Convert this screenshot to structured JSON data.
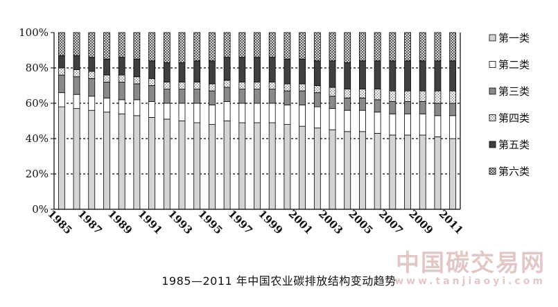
{
  "chart_data": {
    "type": "bar",
    "stacked": true,
    "percent_stacked": true,
    "title": "1985—2011 年中国农业碳排放结构变动趋势",
    "ylim": [
      0,
      100
    ],
    "yticks": [
      "0%",
      "20%",
      "40%",
      "60%",
      "80%",
      "100%"
    ],
    "grid": "horizontal dashed at 20% intervals",
    "legend_position": "right",
    "categories": [
      "1985",
      "1986",
      "1987",
      "1988",
      "1989",
      "1990",
      "1991",
      "1992",
      "1993",
      "1994",
      "1995",
      "1996",
      "1997",
      "1998",
      "1999",
      "2000",
      "2001",
      "2002",
      "2003",
      "2004",
      "2005",
      "2006",
      "2007",
      "2008",
      "2009",
      "2010",
      "2011"
    ],
    "xtick_labels": [
      "1985",
      "1987",
      "1989",
      "1991",
      "1993",
      "1995",
      "1997",
      "1999",
      "2001",
      "2003",
      "2005",
      "2007",
      "2009",
      "2011"
    ],
    "series": [
      {
        "name": "第一类",
        "color": "#d4d4d4",
        "pattern": "solid-light",
        "values": [
          58,
          57,
          56,
          55,
          54,
          53,
          52,
          51,
          50,
          49,
          48,
          50,
          49,
          49,
          49,
          48,
          47,
          46,
          45,
          44,
          44,
          43,
          42,
          42,
          42,
          41,
          40
        ]
      },
      {
        "name": "第二类",
        "color": "#ffffff",
        "pattern": "white",
        "values": [
          8,
          8,
          8,
          8,
          8,
          9,
          9,
          9,
          10,
          11,
          11,
          11,
          11,
          11,
          11,
          11,
          12,
          12,
          12,
          12,
          12,
          12,
          12,
          12,
          12,
          12,
          13
        ]
      },
      {
        "name": "第三类",
        "color": "#8a8a8a",
        "pattern": "solid-mid",
        "values": [
          10,
          10,
          10,
          9,
          10,
          9,
          9,
          8,
          8,
          8,
          8,
          8,
          8,
          8,
          8,
          8,
          8,
          8,
          7,
          7,
          7,
          7,
          7,
          7,
          7,
          7,
          7
        ]
      },
      {
        "name": "第四类",
        "color": "#cccccc",
        "pattern": "speckled",
        "values": [
          4,
          4,
          4,
          4,
          4,
          4,
          4,
          4,
          4,
          4,
          4,
          4,
          4,
          4,
          4,
          4,
          4,
          4,
          5,
          5,
          5,
          6,
          6,
          6,
          6,
          7,
          7
        ]
      },
      {
        "name": "第五类",
        "color": "#404040",
        "pattern": "solid-dark",
        "values": [
          7,
          8,
          8,
          9,
          10,
          10,
          10,
          11,
          11,
          12,
          13,
          13,
          14,
          14,
          14,
          14,
          14,
          14,
          15,
          15,
          16,
          16,
          17,
          17,
          17,
          17,
          17
        ]
      },
      {
        "name": "第六类",
        "color": "#b0b0b0",
        "pattern": "crosshatch",
        "values": [
          13,
          13,
          14,
          15,
          14,
          15,
          16,
          17,
          17,
          16,
          16,
          14,
          14,
          14,
          14,
          15,
          15,
          16,
          16,
          17,
          16,
          16,
          16,
          16,
          16,
          16,
          16
        ]
      }
    ]
  },
  "caption": "1985—2011 年中国农业碳排放结构变动趋势",
  "watermark": {
    "text": "中国碳交易网",
    "url": "www.tanjiaoyi.com"
  }
}
